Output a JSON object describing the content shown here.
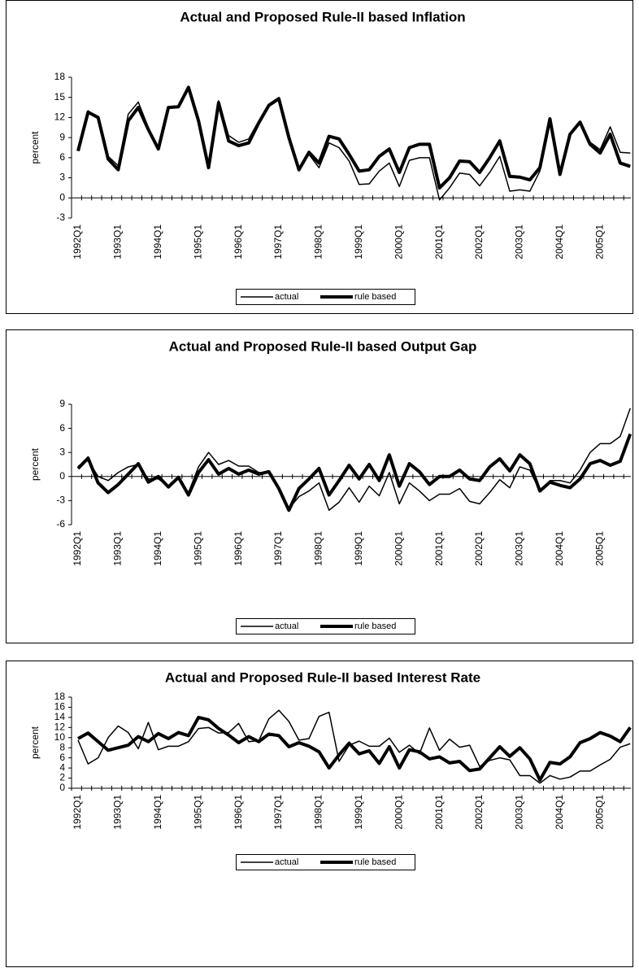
{
  "chart_data": [
    {
      "type": "line",
      "title": "Actual and Proposed Rule-II based Inflation",
      "ylabel": "percent",
      "categories": [
        "1992Q1",
        null,
        null,
        null,
        "1993Q1",
        null,
        null,
        null,
        "1994Q1",
        null,
        null,
        null,
        "1995Q1",
        null,
        null,
        null,
        "1996Q1",
        null,
        null,
        null,
        "1997Q1",
        null,
        null,
        null,
        "1998Q1",
        null,
        null,
        null,
        "1999Q1",
        null,
        null,
        null,
        "2000Q1",
        null,
        null,
        null,
        "2001Q1",
        null,
        null,
        null,
        "2002Q1",
        null,
        null,
        null,
        "2003Q1",
        null,
        null,
        null,
        "2004Q1",
        null,
        null,
        null,
        "2005Q1",
        null,
        null,
        null
      ],
      "series": [
        {
          "name": "actual",
          "color": "#000000",
          "values": [
            7.2,
            13,
            12,
            6.2,
            4.8,
            12.5,
            14.3,
            10.5,
            7.3,
            13.5,
            13.7,
            16.5,
            11.5,
            4.5,
            14.5,
            9.3,
            8.3,
            8.8,
            11.5,
            14,
            15,
            9,
            4.2,
            6.5,
            4.5,
            8.2,
            7.5,
            5.5,
            2,
            2.1,
            4,
            5.2,
            1.7,
            5.6,
            6,
            6,
            -0.3,
            1.5,
            3.7,
            3.5,
            1.8,
            3.8,
            6.2,
            1,
            1.2,
            1,
            4,
            11.5,
            3.5,
            9.5,
            11.3,
            8.3,
            7.2,
            10.6,
            6.8,
            6.7
          ]
        },
        {
          "name": "rule based",
          "color": "#000000",
          "values": [
            7,
            12.8,
            12,
            5.8,
            4.2,
            11.5,
            13.5,
            10.2,
            7.3,
            13.5,
            13.6,
            16.5,
            11.5,
            4.5,
            14.2,
            8.5,
            7.8,
            8.2,
            11.2,
            13.8,
            14.8,
            9,
            4.2,
            6.8,
            5.2,
            9.2,
            8.8,
            6.5,
            4,
            4.2,
            6.2,
            7.3,
            3.8,
            7.5,
            8,
            8,
            1.5,
            3,
            5.5,
            5.4,
            3.8,
            6,
            8.5,
            3.2,
            3.1,
            2.7,
            4.5,
            11.8,
            3.5,
            9.5,
            11.3,
            8,
            6.7,
            9.5,
            5.2,
            4.7
          ]
        }
      ],
      "ylim": [
        -3,
        18
      ],
      "yticks": [
        -3,
        0,
        3,
        6,
        9,
        12,
        15,
        18
      ],
      "legend": "bottom"
    },
    {
      "type": "line",
      "title": "Actual and Proposed Rule-II based Output Gap",
      "ylabel": "percent",
      "categories": [
        "1992Q1",
        null,
        null,
        null,
        "1993Q1",
        null,
        null,
        null,
        "1994Q1",
        null,
        null,
        null,
        "1995Q1",
        null,
        null,
        null,
        "1996Q1",
        null,
        null,
        null,
        "1997Q1",
        null,
        null,
        null,
        "1998Q1",
        null,
        null,
        null,
        "1999Q1",
        null,
        null,
        null,
        "2000Q1",
        null,
        null,
        null,
        "2001Q1",
        null,
        null,
        null,
        "2002Q1",
        null,
        null,
        null,
        "2003Q1",
        null,
        null,
        null,
        "2004Q1",
        null,
        null,
        null,
        "2005Q1",
        null,
        null,
        null
      ],
      "series": [
        {
          "name": "actual",
          "color": "#000000",
          "values": [
            1.3,
            2,
            0,
            -0.5,
            0.5,
            1.2,
            1.5,
            -0.3,
            -0.3,
            -1.2,
            -0.3,
            -2,
            1.2,
            3,
            1.5,
            2,
            1.3,
            1.3,
            0.5,
            0.5,
            -1.5,
            -4,
            -2.5,
            -1.8,
            -0.8,
            -4.2,
            -3.2,
            -1.4,
            -3.2,
            -1.2,
            -2.4,
            0.5,
            -3.4,
            -0.8,
            -1.8,
            -3,
            -2.2,
            -2.2,
            -1.5,
            -3.1,
            -3.4,
            -2,
            -0.4,
            -1.4,
            1.2,
            0.8,
            -1.8,
            -0.5,
            -0.5,
            -0.8,
            0.8,
            3,
            4.1,
            4.1,
            5,
            8.5
          ]
        },
        {
          "name": "rule based",
          "color": "#000000",
          "values": [
            1,
            2.3,
            -0.8,
            -2,
            -1,
            0.3,
            1.6,
            -0.7,
            0,
            -1.3,
            -0.1,
            -2.3,
            0.5,
            2.1,
            0.3,
            1,
            0.3,
            0.8,
            0.3,
            0.6,
            -1.5,
            -4.2,
            -1.5,
            -0.3,
            1,
            -2.3,
            -0.5,
            1.4,
            -0.3,
            1.5,
            -0.5,
            2.7,
            -1.2,
            1.6,
            0.6,
            -1,
            0,
            0,
            0.8,
            -0.3,
            -0.5,
            1.2,
            2.2,
            0.7,
            2.7,
            1.6,
            -1.8,
            -0.7,
            -1.1,
            -1.4,
            -0.3,
            1.6,
            2,
            1.4,
            1.9,
            5.3
          ]
        }
      ],
      "ylim": [
        -6,
        9
      ],
      "yticks": [
        -6,
        -3,
        0,
        3,
        6,
        9
      ],
      "legend": "bottom"
    },
    {
      "type": "line",
      "title": "Actual and Proposed Rule-II based Interest Rate",
      "ylabel": "percent",
      "categories": [
        "1992Q1",
        null,
        null,
        null,
        "1993Q1",
        null,
        null,
        null,
        "1994Q1",
        null,
        null,
        null,
        "1995Q1",
        null,
        null,
        null,
        "1996Q1",
        null,
        null,
        null,
        "1997Q1",
        null,
        null,
        null,
        "1998Q1",
        null,
        null,
        null,
        "1999Q1",
        null,
        null,
        null,
        "2000Q1",
        null,
        null,
        null,
        "2001Q1",
        null,
        null,
        null,
        "2002Q1",
        null,
        null,
        null,
        "2003Q1",
        null,
        null,
        null,
        "2004Q1",
        null,
        null,
        null,
        "2005Q1",
        null,
        null,
        null
      ],
      "series": [
        {
          "name": "actual",
          "color": "#000000",
          "values": [
            9.5,
            4.8,
            6,
            10,
            12.3,
            11,
            7.8,
            13,
            7.6,
            8.3,
            8.3,
            9.2,
            11.8,
            12,
            10.9,
            11,
            12.8,
            9.2,
            9.4,
            13.7,
            15.4,
            13.2,
            9.5,
            9.8,
            14.2,
            15,
            5.3,
            8.5,
            9.3,
            8.3,
            8.3,
            9.9,
            7.1,
            8.5,
            6.8,
            11.9,
            7.5,
            9.7,
            8.1,
            8.5,
            4.3,
            5.5,
            6,
            5.6,
            2.5,
            2.5,
            1,
            2.5,
            1.8,
            2.2,
            3.4,
            3.4,
            4.6,
            5.7,
            8.1,
            8.8
          ]
        },
        {
          "name": "rule based",
          "color": "#000000",
          "values": [
            9.8,
            10.9,
            9.2,
            7.5,
            8,
            8.5,
            10.2,
            9.2,
            10.8,
            9.8,
            11,
            10.4,
            14,
            13.5,
            11.8,
            10.5,
            9,
            10.2,
            9.2,
            10.7,
            10.4,
            8.2,
            9,
            8.3,
            7.2,
            4,
            6.6,
            8.9,
            6.8,
            7.4,
            4.9,
            8.2,
            4,
            7.6,
            7.2,
            5.8,
            6.2,
            5,
            5.3,
            3.5,
            3.8,
            6,
            8.2,
            6.3,
            8,
            5.8,
            1.6,
            5.1,
            4.8,
            6.2,
            9,
            9.8,
            11,
            10.3,
            9.2,
            12
          ]
        }
      ],
      "ylim": [
        0,
        18
      ],
      "yticks": [
        0,
        2,
        4,
        6,
        8,
        10,
        12,
        14,
        16,
        18
      ],
      "legend": "bottom"
    }
  ]
}
